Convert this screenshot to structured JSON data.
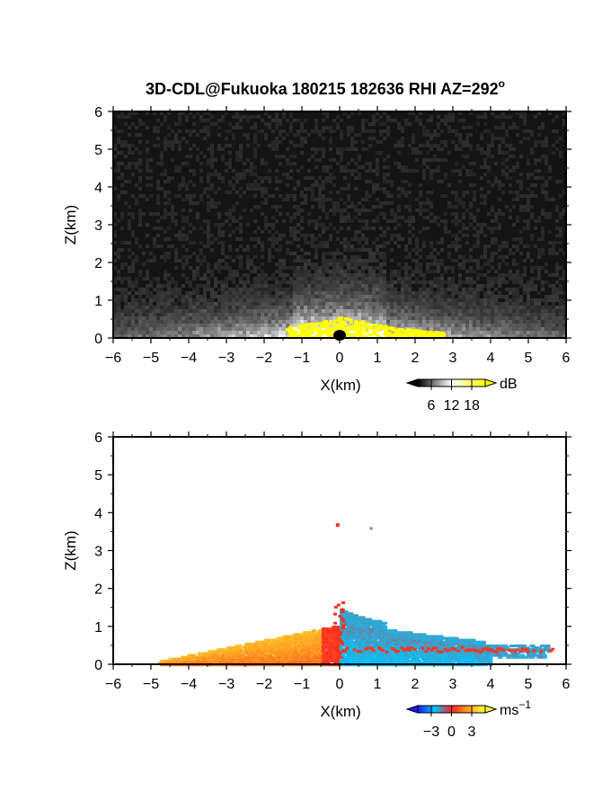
{
  "figure": {
    "title": "3D-CDL@Fukuoka 180215 182636 RHI AZ=292",
    "title_superscript": "o"
  },
  "chart_data": [
    {
      "type": "heatmap",
      "panel": "top",
      "quantity": "backscatter intensity (grayscale), yellow where saturated",
      "xlabel": "X(km)",
      "ylabel": "Z(km)",
      "xlim": [
        -6,
        6
      ],
      "ylim": [
        0,
        6
      ],
      "xticks": [
        "-6",
        "-5",
        "-4",
        "-3",
        "-2",
        "-1",
        "0",
        "1",
        "2",
        "3",
        "4",
        "5",
        "6"
      ],
      "yticks": [
        "0",
        "1",
        "2",
        "3",
        "4",
        "5",
        "6"
      ],
      "background_color": "#141414",
      "saturation_color": "#ffff00",
      "colorbar": {
        "label": "dB",
        "ticks": [
          "6",
          "12",
          "18"
        ],
        "tick_values": [
          6,
          12,
          18
        ],
        "range": [
          2,
          22
        ],
        "colors": [
          "#000000",
          "#ffffff",
          "#ffff00"
        ]
      }
    },
    {
      "type": "heatmap",
      "panel": "bottom",
      "quantity": "radial velocity",
      "xlabel": "X(km)",
      "ylabel": "Z(km)",
      "xlim": [
        -6,
        6
      ],
      "ylim": [
        0,
        6
      ],
      "xticks": [
        "-6",
        "-5",
        "-4",
        "-3",
        "-2",
        "-1",
        "0",
        "1",
        "2",
        "3",
        "4",
        "5",
        "6"
      ],
      "yticks": [
        "0",
        "1",
        "2",
        "3",
        "4",
        "5",
        "6"
      ],
      "background_color": "#ffffff",
      "regions": [
        {
          "name": "receding",
          "x_range": [
            -4.8,
            0
          ],
          "z_range": [
            0,
            1.1
          ],
          "velocity_approx": 2
        },
        {
          "name": "approaching",
          "x_range": [
            0,
            5.5
          ],
          "z_range": [
            0,
            1.7
          ],
          "velocity_approx": -2
        }
      ],
      "colorbar": {
        "label": "ms",
        "label_superscript": "−1",
        "ticks": [
          "−3",
          "0",
          "3"
        ],
        "tick_values": [
          -3,
          0,
          3
        ],
        "range": [
          -5,
          5
        ],
        "colors": [
          "#1a1aff",
          "#00c8ff",
          "#ff2020",
          "#ffa020",
          "#ffff40"
        ]
      }
    }
  ]
}
